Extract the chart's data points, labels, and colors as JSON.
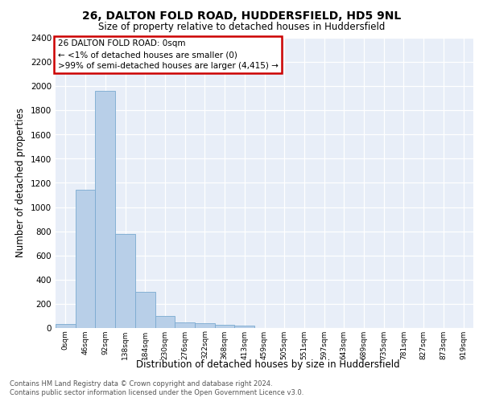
{
  "title_line1": "26, DALTON FOLD ROAD, HUDDERSFIELD, HD5 9NL",
  "title_line2": "Size of property relative to detached houses in Huddersfield",
  "xlabel": "Distribution of detached houses by size in Huddersfield",
  "ylabel": "Number of detached properties",
  "annotation_title": "26 DALTON FOLD ROAD: 0sqm",
  "annotation_line2": "← <1% of detached houses are smaller (0)",
  "annotation_line3": ">99% of semi-detached houses are larger (4,415) →",
  "footer_line1": "Contains HM Land Registry data © Crown copyright and database right 2024.",
  "footer_line2": "Contains public sector information licensed under the Open Government Licence v3.0.",
  "bar_color": "#b8cfe8",
  "bar_edge_color": "#7aaad0",
  "background_color": "#e8eef8",
  "bin_labels": [
    "0sqm",
    "46sqm",
    "92sqm",
    "138sqm",
    "184sqm",
    "230sqm",
    "276sqm",
    "322sqm",
    "368sqm",
    "413sqm",
    "459sqm",
    "505sqm",
    "551sqm",
    "597sqm",
    "643sqm",
    "689sqm",
    "735sqm",
    "781sqm",
    "827sqm",
    "873sqm",
    "919sqm"
  ],
  "bar_heights": [
    30,
    1140,
    1960,
    775,
    300,
    100,
    45,
    40,
    25,
    15,
    0,
    0,
    0,
    0,
    0,
    0,
    0,
    0,
    0,
    0,
    0
  ],
  "ylim": [
    0,
    2400
  ],
  "yticks": [
    0,
    200,
    400,
    600,
    800,
    1000,
    1200,
    1400,
    1600,
    1800,
    2000,
    2200,
    2400
  ],
  "grid_color": "#ffffff",
  "annotation_box_edge": "#cc0000"
}
